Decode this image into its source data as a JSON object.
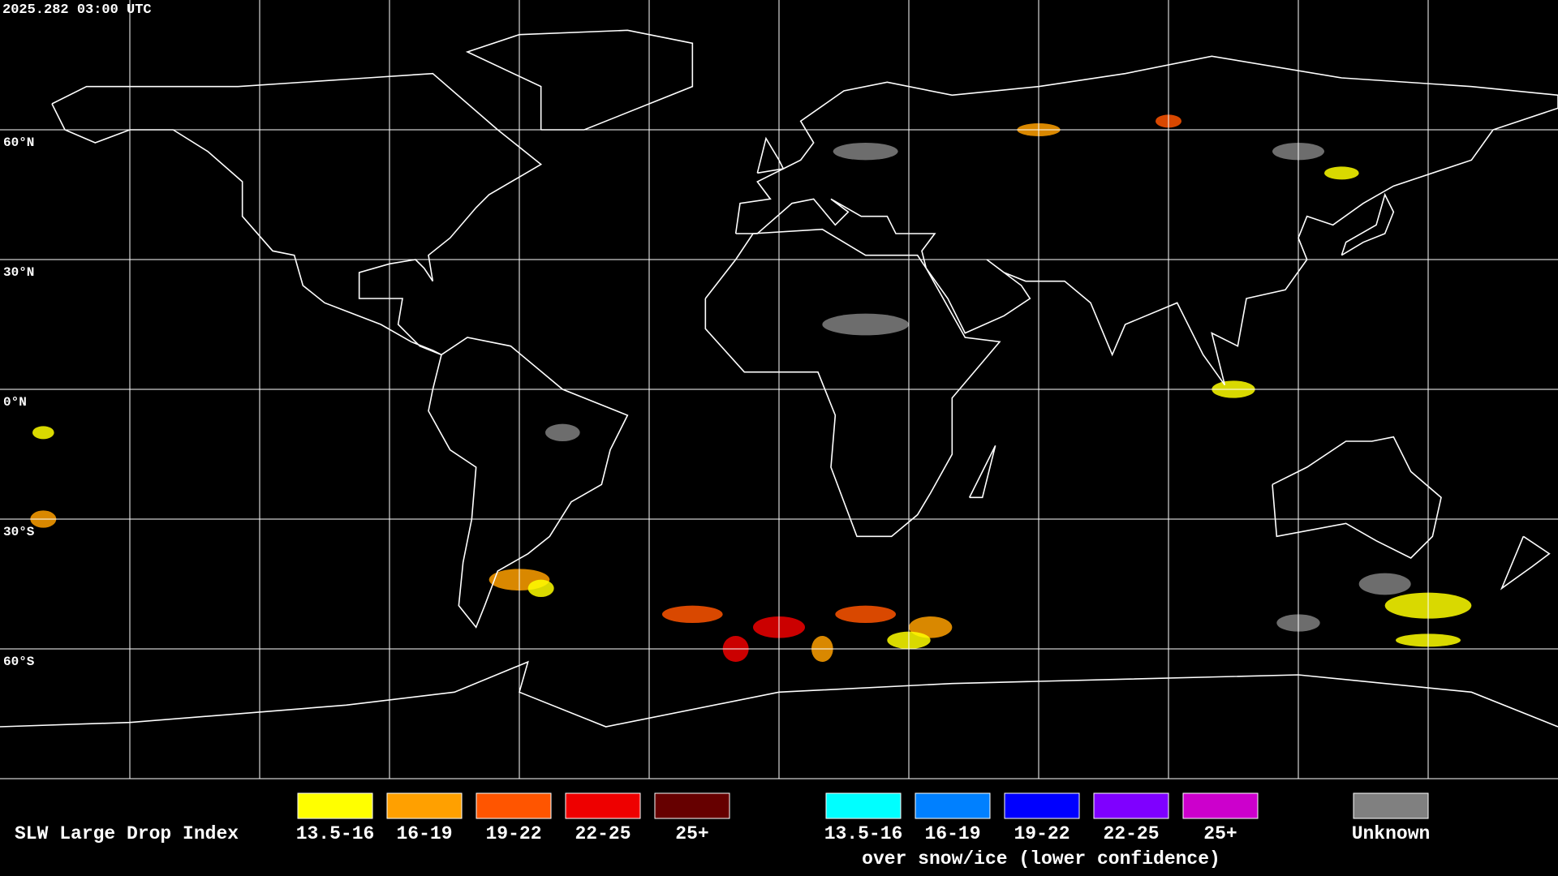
{
  "header": {
    "timestamp": "2025.282 03:00 UTC"
  },
  "map": {
    "lat_labels": [
      "60°N",
      "30°N",
      "0°N",
      "30°S",
      "60°S"
    ]
  },
  "legend": {
    "title": "SLW Large Drop Index",
    "items": [
      {
        "label": "13.5-16",
        "color": "#ffff00"
      },
      {
        "label": "16-19",
        "color": "#ffa000"
      },
      {
        "label": "19-22",
        "color": "#ff5500"
      },
      {
        "label": "22-25",
        "color": "#ee0000"
      },
      {
        "label": "25+",
        "color": "#660000"
      }
    ],
    "snow_items": [
      {
        "label": "13.5-16",
        "color": "#00ffff"
      },
      {
        "label": "16-19",
        "color": "#0080ff"
      },
      {
        "label": "19-22",
        "color": "#0000ff"
      },
      {
        "label": "22-25",
        "color": "#7f00ff"
      },
      {
        "label": "25+",
        "color": "#cc00cc"
      }
    ],
    "snow_caption": "over snow/ice (lower confidence)",
    "unknown": {
      "label": "Unknown",
      "color": "#808080"
    }
  }
}
